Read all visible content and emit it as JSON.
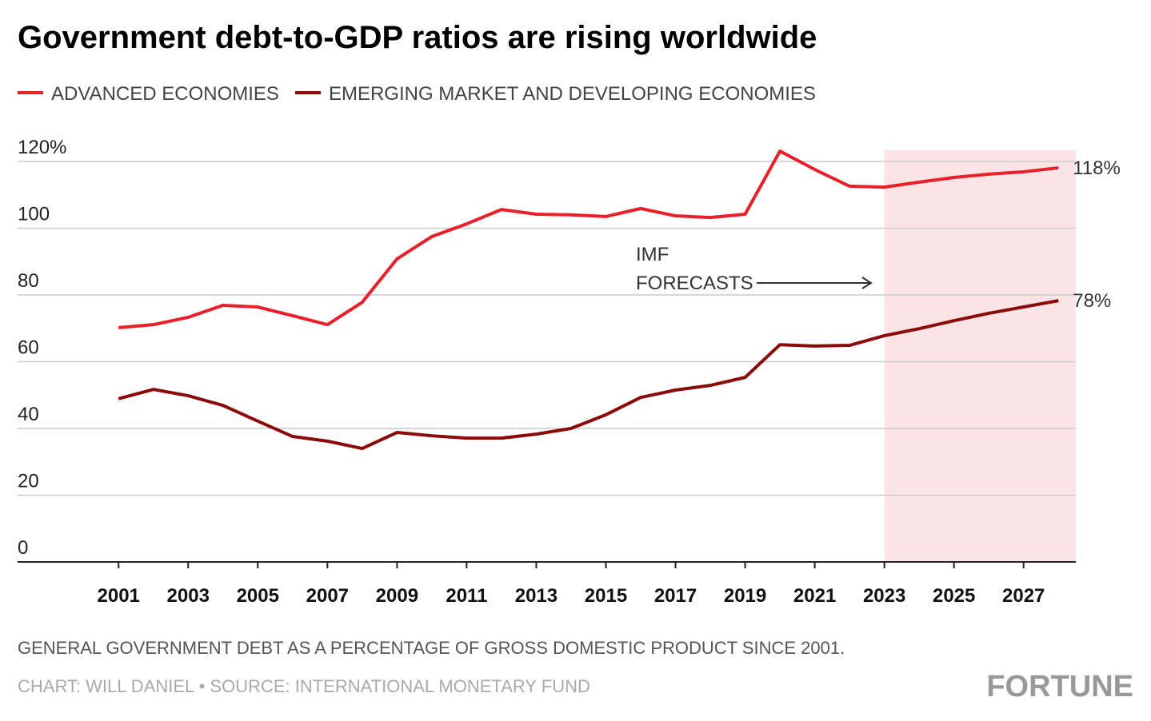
{
  "chart_data": {
    "type": "line",
    "title": "Government debt-to-GDP ratios are rising worldwide",
    "x": [
      2001,
      2002,
      2003,
      2004,
      2005,
      2006,
      2007,
      2008,
      2009,
      2010,
      2011,
      2012,
      2013,
      2014,
      2015,
      2016,
      2017,
      2018,
      2019,
      2020,
      2021,
      2022,
      2023,
      2024,
      2025,
      2026,
      2027,
      2028
    ],
    "series": [
      {
        "name": "ADVANCED ECONOMIES",
        "color": "#e8202a",
        "end_label": "118%",
        "values": [
          70.2,
          71.1,
          73.3,
          76.9,
          76.4,
          73.8,
          71.1,
          77.8,
          90.8,
          97.5,
          101.3,
          105.6,
          104.2,
          104.0,
          103.5,
          105.9,
          103.7,
          103.2,
          104.2,
          123.1,
          117.6,
          112.6,
          112.3,
          113.8,
          115.2,
          116.2,
          116.9,
          118.1
        ]
      },
      {
        "name": "EMERGING MARKET AND DEVELOPING ECONOMIES",
        "color": "#8b0a0a",
        "end_label": "78%",
        "values": [
          48.9,
          51.7,
          49.8,
          46.9,
          42.2,
          37.6,
          36.2,
          34.0,
          38.8,
          37.8,
          37.1,
          37.1,
          38.3,
          40.0,
          44.1,
          49.3,
          51.5,
          52.9,
          55.3,
          65.1,
          64.7,
          64.9,
          67.8,
          69.9,
          72.3,
          74.5,
          76.4,
          78.3
        ]
      }
    ],
    "xlim": [
      1998.1,
      2028.5
    ],
    "xticks": [
      2001,
      2003,
      2005,
      2007,
      2009,
      2011,
      2013,
      2015,
      2017,
      2019,
      2021,
      2023,
      2025,
      2027
    ],
    "ylim": [
      0,
      120
    ],
    "yticks": [
      0,
      20,
      40,
      60,
      80,
      100,
      {
        "value": 120,
        "label": "120%"
      }
    ],
    "grid": true,
    "forecast_start": 2023,
    "forecast_label": [
      "IMF",
      "FORECASTS"
    ],
    "note": "GENERAL GOVERNMENT DEBT AS A PERCENTAGE OF GROSS DOMESTIC PRODUCT SINCE 2001.",
    "source": "CHART: WILL DANIEL • SOURCE: INTERNATIONAL MONETARY FUND",
    "brand": "FORTUNE"
  }
}
